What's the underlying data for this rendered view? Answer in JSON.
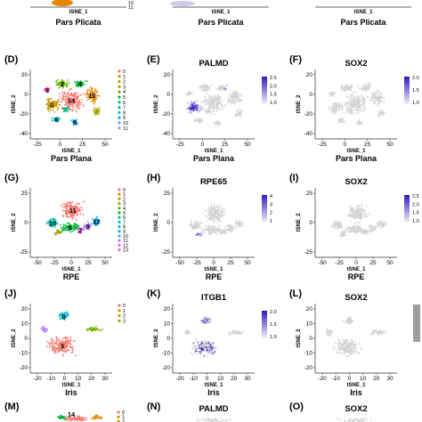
{
  "top_strip": {
    "tissue_labels": [
      "Pars Plicata",
      "Pars Plicata",
      "Pars Plicata"
    ],
    "xaxis_label": "tSNE_1",
    "legend_visible": [
      "10",
      "11"
    ]
  },
  "rows": [
    {
      "id": "pars-plana",
      "tissue": "Pars Plana",
      "panels": [
        "(D)",
        "(E)",
        "(F)"
      ],
      "genes": [
        "PALMD",
        "SOX2"
      ],
      "legend": [
        "0",
        "1",
        "2",
        "3",
        "4",
        "5",
        "6",
        "7",
        "8",
        "9",
        "10",
        "11"
      ],
      "cluster_labels": [
        "14",
        "10",
        "0",
        "2",
        "4",
        "6",
        "9",
        "8"
      ],
      "x_ticks": [
        "-25",
        "0",
        "25",
        "50"
      ],
      "y_ticks": [
        "20",
        "0",
        "-20",
        "-40"
      ],
      "colorbars": [
        [
          "2.5",
          "2.0",
          "1.5",
          "1.0"
        ],
        [
          "2.0",
          "1.5",
          "1.0"
        ]
      ]
    },
    {
      "id": "rpe",
      "tissue": "RPE",
      "panels": [
        "(G)",
        "(H)",
        "(I)"
      ],
      "genes": [
        "RPE65",
        "SOX2"
      ],
      "legend": [
        "0",
        "1",
        "2",
        "3",
        "4",
        "5",
        "6",
        "7",
        "8",
        "9",
        "10",
        "11",
        "12",
        "13"
      ],
      "cluster_labels": [
        "11",
        "0",
        "10",
        "9",
        "12",
        "2"
      ],
      "x_ticks": [
        "-50",
        "-25",
        "0",
        "25",
        "50"
      ],
      "y_ticks": [
        "25",
        "0",
        "-25"
      ],
      "colorbars": [
        [
          "4",
          "3",
          "2",
          "1"
        ],
        [
          "2.5",
          "2.0",
          "1.5",
          "1.0"
        ]
      ]
    },
    {
      "id": "iris",
      "tissue": "Iris",
      "panels": [
        "(J)",
        "(K)",
        "(L)"
      ],
      "genes": [
        "ITGB1",
        "SOX2"
      ],
      "legend": [
        "0",
        "1",
        "2",
        "3"
      ],
      "cluster_labels": [
        "3",
        "0"
      ],
      "x_ticks": [
        "-20",
        "-10",
        "0",
        "10",
        "20",
        "30"
      ],
      "y_ticks": [
        "20",
        "10",
        "0",
        "-10",
        "-20"
      ],
      "colorbars": [
        [
          "2.0",
          "1.5",
          "1.0"
        ]
      ]
    }
  ],
  "bottom_strip": {
    "panels": [
      "(M)",
      "(N)",
      "(O)"
    ],
    "genes": [
      "PALMD",
      "SOX2"
    ],
    "cluster_labels": [
      "14"
    ],
    "legend_visible": [
      "0",
      "1",
      "2"
    ]
  },
  "axes": {
    "x": "tSNE_1",
    "y": "tSNE_2"
  },
  "colors": {
    "expr_high": "#3b1fc4",
    "expr_low": "#e3e2f2",
    "background_cell": "#d3d3d3",
    "cluster_palette": [
      "#f8766d",
      "#e58700",
      "#c99800",
      "#a3a500",
      "#6bb100",
      "#00ba38",
      "#00bf7d",
      "#00c0af",
      "#00bcd8",
      "#00b0f6",
      "#619cff",
      "#b983ff",
      "#e76bf3",
      "#fd61d1",
      "#ff67a4"
    ]
  }
}
